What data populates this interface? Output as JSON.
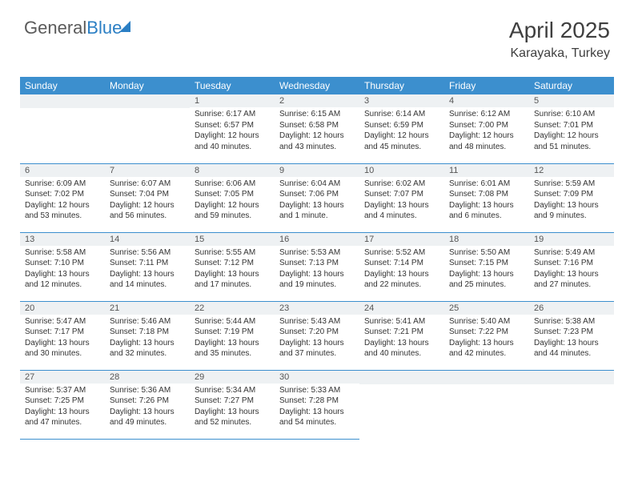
{
  "brand": {
    "name_a": "General",
    "name_b": "Blue"
  },
  "title": "April 2025",
  "location": "Karayaka, Turkey",
  "colors": {
    "header_bg": "#3c8fce",
    "header_text": "#ffffff",
    "daynum_bg": "#eef1f3",
    "border": "#3c8fce",
    "text": "#333333",
    "brand_gray": "#5a5a5a",
    "brand_blue": "#2b7fc4",
    "page_bg": "#ffffff"
  },
  "weekdays": [
    "Sunday",
    "Monday",
    "Tuesday",
    "Wednesday",
    "Thursday",
    "Friday",
    "Saturday"
  ],
  "grid": [
    [
      {
        "num": "",
        "lines": []
      },
      {
        "num": "",
        "lines": []
      },
      {
        "num": "1",
        "lines": [
          "Sunrise: 6:17 AM",
          "Sunset: 6:57 PM",
          "Daylight: 12 hours",
          "and 40 minutes."
        ]
      },
      {
        "num": "2",
        "lines": [
          "Sunrise: 6:15 AM",
          "Sunset: 6:58 PM",
          "Daylight: 12 hours",
          "and 43 minutes."
        ]
      },
      {
        "num": "3",
        "lines": [
          "Sunrise: 6:14 AM",
          "Sunset: 6:59 PM",
          "Daylight: 12 hours",
          "and 45 minutes."
        ]
      },
      {
        "num": "4",
        "lines": [
          "Sunrise: 6:12 AM",
          "Sunset: 7:00 PM",
          "Daylight: 12 hours",
          "and 48 minutes."
        ]
      },
      {
        "num": "5",
        "lines": [
          "Sunrise: 6:10 AM",
          "Sunset: 7:01 PM",
          "Daylight: 12 hours",
          "and 51 minutes."
        ]
      }
    ],
    [
      {
        "num": "6",
        "lines": [
          "Sunrise: 6:09 AM",
          "Sunset: 7:02 PM",
          "Daylight: 12 hours",
          "and 53 minutes."
        ]
      },
      {
        "num": "7",
        "lines": [
          "Sunrise: 6:07 AM",
          "Sunset: 7:04 PM",
          "Daylight: 12 hours",
          "and 56 minutes."
        ]
      },
      {
        "num": "8",
        "lines": [
          "Sunrise: 6:06 AM",
          "Sunset: 7:05 PM",
          "Daylight: 12 hours",
          "and 59 minutes."
        ]
      },
      {
        "num": "9",
        "lines": [
          "Sunrise: 6:04 AM",
          "Sunset: 7:06 PM",
          "Daylight: 13 hours",
          "and 1 minute."
        ]
      },
      {
        "num": "10",
        "lines": [
          "Sunrise: 6:02 AM",
          "Sunset: 7:07 PM",
          "Daylight: 13 hours",
          "and 4 minutes."
        ]
      },
      {
        "num": "11",
        "lines": [
          "Sunrise: 6:01 AM",
          "Sunset: 7:08 PM",
          "Daylight: 13 hours",
          "and 6 minutes."
        ]
      },
      {
        "num": "12",
        "lines": [
          "Sunrise: 5:59 AM",
          "Sunset: 7:09 PM",
          "Daylight: 13 hours",
          "and 9 minutes."
        ]
      }
    ],
    [
      {
        "num": "13",
        "lines": [
          "Sunrise: 5:58 AM",
          "Sunset: 7:10 PM",
          "Daylight: 13 hours",
          "and 12 minutes."
        ]
      },
      {
        "num": "14",
        "lines": [
          "Sunrise: 5:56 AM",
          "Sunset: 7:11 PM",
          "Daylight: 13 hours",
          "and 14 minutes."
        ]
      },
      {
        "num": "15",
        "lines": [
          "Sunrise: 5:55 AM",
          "Sunset: 7:12 PM",
          "Daylight: 13 hours",
          "and 17 minutes."
        ]
      },
      {
        "num": "16",
        "lines": [
          "Sunrise: 5:53 AM",
          "Sunset: 7:13 PM",
          "Daylight: 13 hours",
          "and 19 minutes."
        ]
      },
      {
        "num": "17",
        "lines": [
          "Sunrise: 5:52 AM",
          "Sunset: 7:14 PM",
          "Daylight: 13 hours",
          "and 22 minutes."
        ]
      },
      {
        "num": "18",
        "lines": [
          "Sunrise: 5:50 AM",
          "Sunset: 7:15 PM",
          "Daylight: 13 hours",
          "and 25 minutes."
        ]
      },
      {
        "num": "19",
        "lines": [
          "Sunrise: 5:49 AM",
          "Sunset: 7:16 PM",
          "Daylight: 13 hours",
          "and 27 minutes."
        ]
      }
    ],
    [
      {
        "num": "20",
        "lines": [
          "Sunrise: 5:47 AM",
          "Sunset: 7:17 PM",
          "Daylight: 13 hours",
          "and 30 minutes."
        ]
      },
      {
        "num": "21",
        "lines": [
          "Sunrise: 5:46 AM",
          "Sunset: 7:18 PM",
          "Daylight: 13 hours",
          "and 32 minutes."
        ]
      },
      {
        "num": "22",
        "lines": [
          "Sunrise: 5:44 AM",
          "Sunset: 7:19 PM",
          "Daylight: 13 hours",
          "and 35 minutes."
        ]
      },
      {
        "num": "23",
        "lines": [
          "Sunrise: 5:43 AM",
          "Sunset: 7:20 PM",
          "Daylight: 13 hours",
          "and 37 minutes."
        ]
      },
      {
        "num": "24",
        "lines": [
          "Sunrise: 5:41 AM",
          "Sunset: 7:21 PM",
          "Daylight: 13 hours",
          "and 40 minutes."
        ]
      },
      {
        "num": "25",
        "lines": [
          "Sunrise: 5:40 AM",
          "Sunset: 7:22 PM",
          "Daylight: 13 hours",
          "and 42 minutes."
        ]
      },
      {
        "num": "26",
        "lines": [
          "Sunrise: 5:38 AM",
          "Sunset: 7:23 PM",
          "Daylight: 13 hours",
          "and 44 minutes."
        ]
      }
    ],
    [
      {
        "num": "27",
        "lines": [
          "Sunrise: 5:37 AM",
          "Sunset: 7:25 PM",
          "Daylight: 13 hours",
          "and 47 minutes."
        ]
      },
      {
        "num": "28",
        "lines": [
          "Sunrise: 5:36 AM",
          "Sunset: 7:26 PM",
          "Daylight: 13 hours",
          "and 49 minutes."
        ]
      },
      {
        "num": "29",
        "lines": [
          "Sunrise: 5:34 AM",
          "Sunset: 7:27 PM",
          "Daylight: 13 hours",
          "and 52 minutes."
        ]
      },
      {
        "num": "30",
        "lines": [
          "Sunrise: 5:33 AM",
          "Sunset: 7:28 PM",
          "Daylight: 13 hours",
          "and 54 minutes."
        ]
      },
      {
        "num": "",
        "lines": [],
        "void": true
      },
      {
        "num": "",
        "lines": [],
        "void": true
      },
      {
        "num": "",
        "lines": [],
        "void": true
      }
    ]
  ]
}
